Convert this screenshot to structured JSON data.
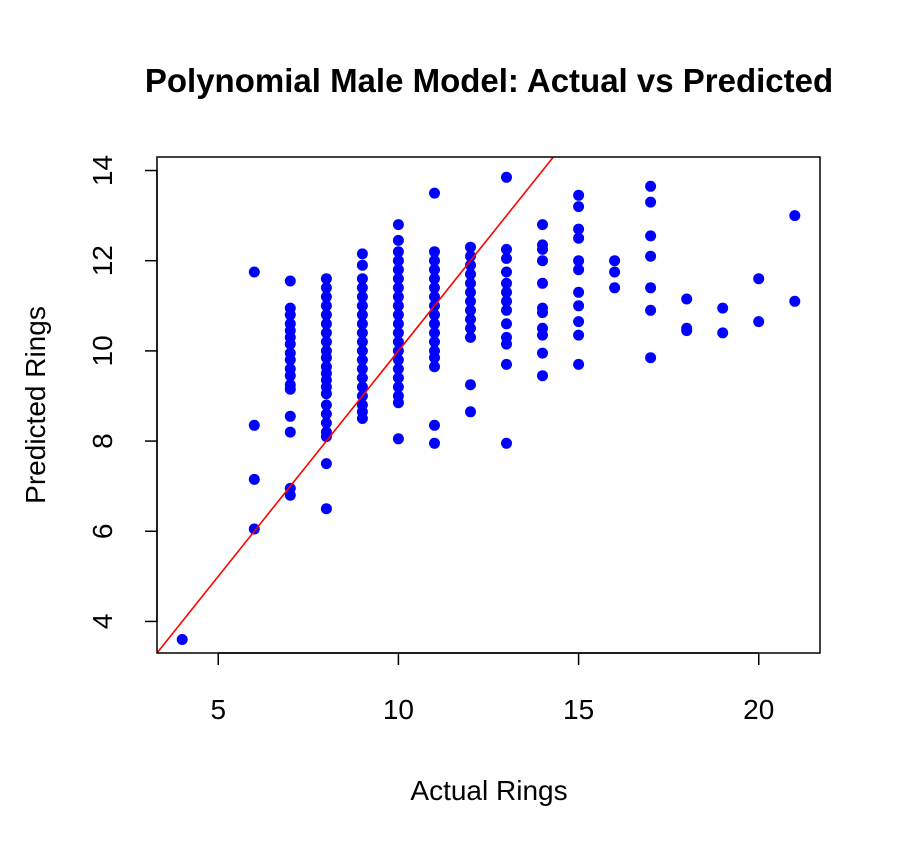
{
  "chart_data": {
    "type": "scatter",
    "title": "Polynomial Male Model: Actual vs Predicted",
    "xlabel": "Actual Rings",
    "ylabel": "Predicted Rings",
    "xlim": [
      3.3,
      21.7
    ],
    "ylim": [
      3.3,
      14.3
    ],
    "xticks": [
      5,
      10,
      15,
      20
    ],
    "yticks": [
      4,
      6,
      8,
      10,
      12,
      14
    ],
    "grid": false,
    "point_color": "#0000ff",
    "reference_line": {
      "slope": 1,
      "intercept": 0,
      "color": "#ff0000"
    },
    "points": [
      [
        4,
        3.6
      ],
      [
        6,
        11.75
      ],
      [
        6,
        8.35
      ],
      [
        6,
        7.15
      ],
      [
        6,
        6.05
      ],
      [
        7,
        11.55
      ],
      [
        7,
        10.95
      ],
      [
        7,
        10.8
      ],
      [
        7,
        10.6
      ],
      [
        7,
        10.45
      ],
      [
        7,
        10.3
      ],
      [
        7,
        10.15
      ],
      [
        7,
        9.95
      ],
      [
        7,
        9.8
      ],
      [
        7,
        9.6
      ],
      [
        7,
        9.45
      ],
      [
        7,
        9.25
      ],
      [
        7,
        9.15
      ],
      [
        7,
        8.55
      ],
      [
        7,
        8.2
      ],
      [
        7,
        6.95
      ],
      [
        7,
        6.8
      ],
      [
        8,
        11.6
      ],
      [
        8,
        11.4
      ],
      [
        8,
        11.2
      ],
      [
        8,
        11.0
      ],
      [
        8,
        10.8
      ],
      [
        8,
        10.6
      ],
      [
        8,
        10.4
      ],
      [
        8,
        10.2
      ],
      [
        8,
        10.0
      ],
      [
        8,
        9.85
      ],
      [
        8,
        9.65
      ],
      [
        8,
        9.5
      ],
      [
        8,
        9.35
      ],
      [
        8,
        9.2
      ],
      [
        8,
        9.05
      ],
      [
        8,
        8.8
      ],
      [
        8,
        8.6
      ],
      [
        8,
        8.4
      ],
      [
        8,
        8.2
      ],
      [
        8,
        8.1
      ],
      [
        8,
        7.5
      ],
      [
        8,
        6.5
      ],
      [
        9,
        12.15
      ],
      [
        9,
        11.9
      ],
      [
        9,
        11.6
      ],
      [
        9,
        11.4
      ],
      [
        9,
        11.2
      ],
      [
        9,
        11.0
      ],
      [
        9,
        10.8
      ],
      [
        9,
        10.6
      ],
      [
        9,
        10.4
      ],
      [
        9,
        10.2
      ],
      [
        9,
        10.0
      ],
      [
        9,
        9.8
      ],
      [
        9,
        9.6
      ],
      [
        9,
        9.4
      ],
      [
        9,
        9.2
      ],
      [
        9,
        9.0
      ],
      [
        9,
        8.8
      ],
      [
        9,
        8.65
      ],
      [
        9,
        8.5
      ],
      [
        10,
        12.8
      ],
      [
        10,
        12.45
      ],
      [
        10,
        12.2
      ],
      [
        10,
        12.0
      ],
      [
        10,
        11.8
      ],
      [
        10,
        11.6
      ],
      [
        10,
        11.4
      ],
      [
        10,
        11.2
      ],
      [
        10,
        11.0
      ],
      [
        10,
        10.8
      ],
      [
        10,
        10.6
      ],
      [
        10,
        10.4
      ],
      [
        10,
        10.2
      ],
      [
        10,
        10.0
      ],
      [
        10,
        9.8
      ],
      [
        10,
        9.6
      ],
      [
        10,
        9.4
      ],
      [
        10,
        9.2
      ],
      [
        10,
        9.0
      ],
      [
        10,
        8.85
      ],
      [
        10,
        8.05
      ],
      [
        11,
        13.5
      ],
      [
        11,
        12.2
      ],
      [
        11,
        12.0
      ],
      [
        11,
        11.8
      ],
      [
        11,
        11.6
      ],
      [
        11,
        11.4
      ],
      [
        11,
        11.2
      ],
      [
        11,
        11.0
      ],
      [
        11,
        10.8
      ],
      [
        11,
        10.6
      ],
      [
        11,
        10.4
      ],
      [
        11,
        10.2
      ],
      [
        11,
        10.0
      ],
      [
        11,
        9.85
      ],
      [
        11,
        9.65
      ],
      [
        11,
        8.35
      ],
      [
        11,
        7.95
      ],
      [
        12,
        12.3
      ],
      [
        12,
        12.1
      ],
      [
        12,
        11.9
      ],
      [
        12,
        11.7
      ],
      [
        12,
        11.5
      ],
      [
        12,
        11.3
      ],
      [
        12,
        11.1
      ],
      [
        12,
        10.9
      ],
      [
        12,
        10.7
      ],
      [
        12,
        10.5
      ],
      [
        12,
        10.3
      ],
      [
        12,
        9.25
      ],
      [
        12,
        8.65
      ],
      [
        13,
        13.85
      ],
      [
        13,
        12.25
      ],
      [
        13,
        12.05
      ],
      [
        13,
        11.75
      ],
      [
        13,
        11.5
      ],
      [
        13,
        11.3
      ],
      [
        13,
        11.1
      ],
      [
        13,
        10.9
      ],
      [
        13,
        10.6
      ],
      [
        13,
        10.3
      ],
      [
        13,
        10.15
      ],
      [
        13,
        9.7
      ],
      [
        13,
        7.95
      ],
      [
        14,
        12.8
      ],
      [
        14,
        12.35
      ],
      [
        14,
        12.25
      ],
      [
        14,
        12.0
      ],
      [
        14,
        11.5
      ],
      [
        14,
        10.95
      ],
      [
        14,
        10.85
      ],
      [
        14,
        10.5
      ],
      [
        14,
        10.35
      ],
      [
        14,
        9.95
      ],
      [
        14,
        9.45
      ],
      [
        15,
        13.45
      ],
      [
        15,
        13.2
      ],
      [
        15,
        12.7
      ],
      [
        15,
        12.5
      ],
      [
        15,
        12.0
      ],
      [
        15,
        11.8
      ],
      [
        15,
        11.3
      ],
      [
        15,
        11.0
      ],
      [
        15,
        10.65
      ],
      [
        15,
        10.35
      ],
      [
        15,
        9.7
      ],
      [
        16,
        12.0
      ],
      [
        16,
        11.75
      ],
      [
        16,
        11.4
      ],
      [
        17,
        13.65
      ],
      [
        17,
        13.3
      ],
      [
        17,
        12.55
      ],
      [
        17,
        12.1
      ],
      [
        17,
        11.4
      ],
      [
        17,
        10.9
      ],
      [
        17,
        9.85
      ],
      [
        18,
        11.15
      ],
      [
        18,
        10.5
      ],
      [
        18,
        10.45
      ],
      [
        19,
        10.95
      ],
      [
        19,
        10.4
      ],
      [
        20,
        11.6
      ],
      [
        20,
        10.65
      ],
      [
        21,
        13.0
      ],
      [
        21,
        11.1
      ]
    ]
  }
}
